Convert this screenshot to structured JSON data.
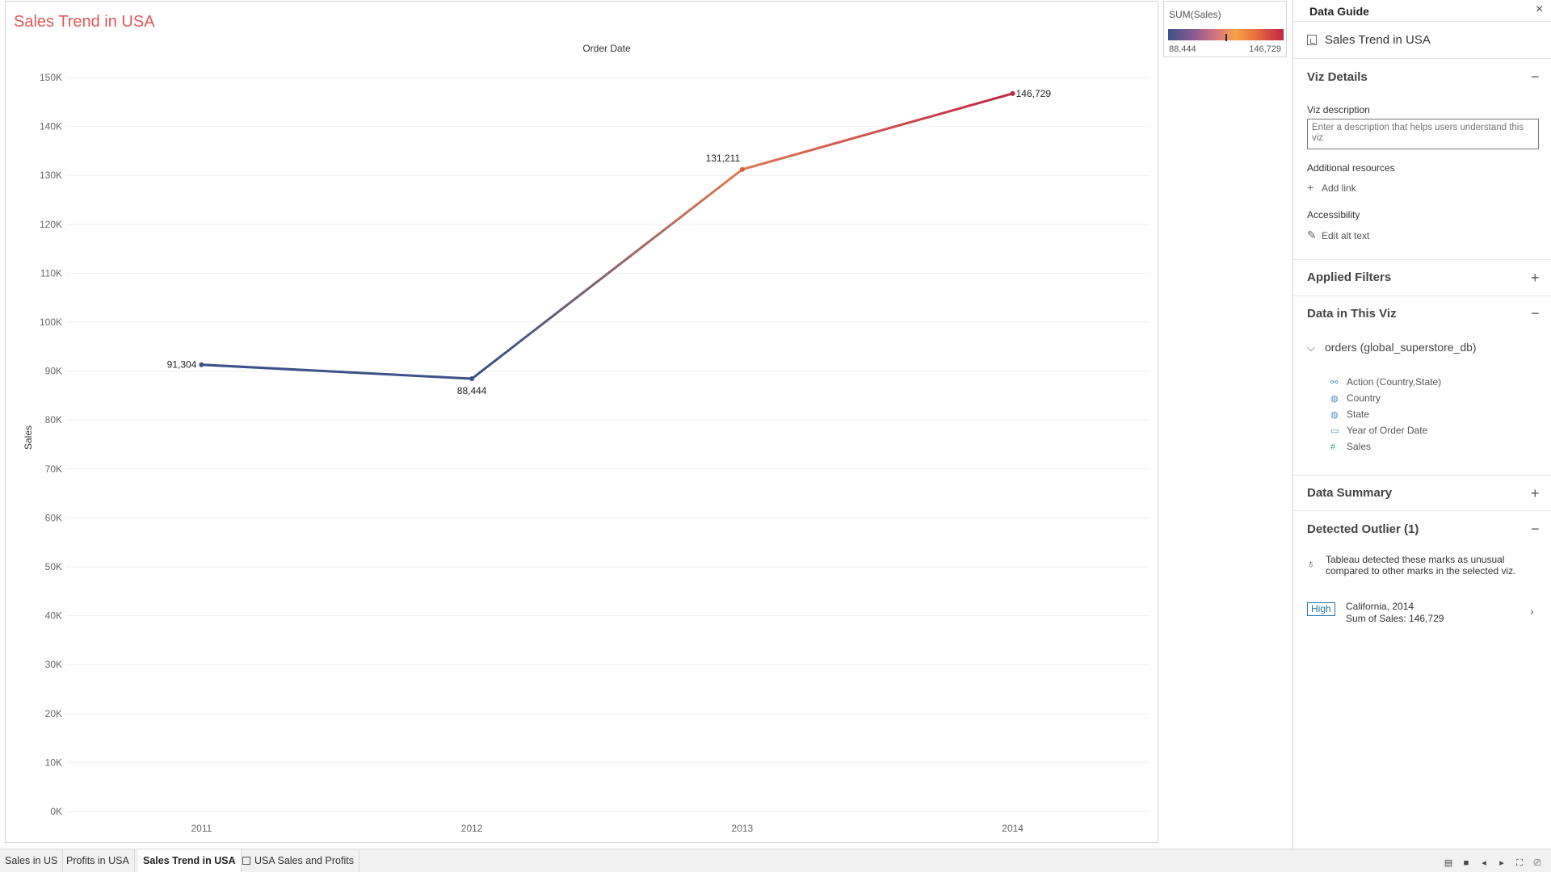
{
  "viz": {
    "title": "Sales Trend in USA"
  },
  "chart_data": {
    "type": "line",
    "title": "Sales Trend in USA",
    "xlabel": "Order Date",
    "ylabel": "Sales",
    "categories": [
      "2011",
      "2012",
      "2013",
      "2014"
    ],
    "series": [
      {
        "values": [
          91304,
          88444,
          131211,
          146729
        ]
      }
    ],
    "data_labels": [
      "91,304",
      "88,444",
      "131,211",
      "146,729"
    ],
    "ylim": [
      0,
      150000
    ],
    "y_ticks": [
      {
        "value": 0,
        "label": "0K"
      },
      {
        "value": 10000,
        "label": "10K"
      },
      {
        "value": 20000,
        "label": "20K"
      },
      {
        "value": 30000,
        "label": "30K"
      },
      {
        "value": 40000,
        "label": "40K"
      },
      {
        "value": 50000,
        "label": "50K"
      },
      {
        "value": 60000,
        "label": "60K"
      },
      {
        "value": 70000,
        "label": "70K"
      },
      {
        "value": 80000,
        "label": "80K"
      },
      {
        "value": 90000,
        "label": "90K"
      },
      {
        "value": 100000,
        "label": "100K"
      },
      {
        "value": 110000,
        "label": "110K"
      },
      {
        "value": 120000,
        "label": "120K"
      },
      {
        "value": 130000,
        "label": "130K"
      },
      {
        "value": 140000,
        "label": "140K"
      },
      {
        "value": 150000,
        "label": "150K"
      }
    ],
    "color_min": "#3c5287",
    "color_mid": "#e07a50",
    "color_max": "#c22547",
    "grid": true
  },
  "legend": {
    "title": "SUM(Sales)",
    "min_label": "88,444",
    "max_label": "146,729"
  },
  "guide": {
    "title": "Data Guide",
    "close_icon": "×",
    "sheet_name": "Sales Trend in USA",
    "viz_details": "Viz Details",
    "viz_details_toggle": "−",
    "viz_description_label": "Viz description",
    "viz_description_placeholder": "Enter a description that helps users understand this viz",
    "additional_resources": "Additional resources",
    "add_link": "Add link",
    "accessibility": "Accessibility",
    "edit_alt_text": "Edit alt text",
    "applied_filters": "Applied Filters",
    "applied_filters_toggle": "+",
    "data_in_viz": "Data in This Viz",
    "data_in_viz_toggle": "−",
    "datasource": "orders (global_superstore_db)",
    "fields": [
      {
        "name": "Action (Country,State)",
        "icon": "⚯",
        "color": "#4a90c2"
      },
      {
        "name": "Country",
        "icon": "◍",
        "color": "#4a90c2"
      },
      {
        "name": "State",
        "icon": "◍",
        "color": "#4a90c2"
      },
      {
        "name": "Year of Order Date",
        "icon": "▭",
        "color": "#4a90c2"
      },
      {
        "name": "Sales",
        "icon": "#",
        "color": "#2aa37a"
      }
    ],
    "data_summary": "Data Summary",
    "data_summary_toggle": "+",
    "detected_outlier": "Detected Outlier (1)",
    "detected_outlier_toggle": "−",
    "outlier_text": "Tableau detected these marks as unusual compared to other marks in the selected viz.",
    "outlier_badge": "High",
    "outlier_name": "California, 2014",
    "outlier_sum": "Sum of Sales: 146,729"
  },
  "tabs": [
    {
      "label": "Sales in US",
      "active": false
    },
    {
      "label": "Profits in USA",
      "active": false
    },
    {
      "label": "Sales Trend in USA",
      "active": true
    },
    {
      "label": "USA Sales and Profits",
      "active": false
    }
  ]
}
